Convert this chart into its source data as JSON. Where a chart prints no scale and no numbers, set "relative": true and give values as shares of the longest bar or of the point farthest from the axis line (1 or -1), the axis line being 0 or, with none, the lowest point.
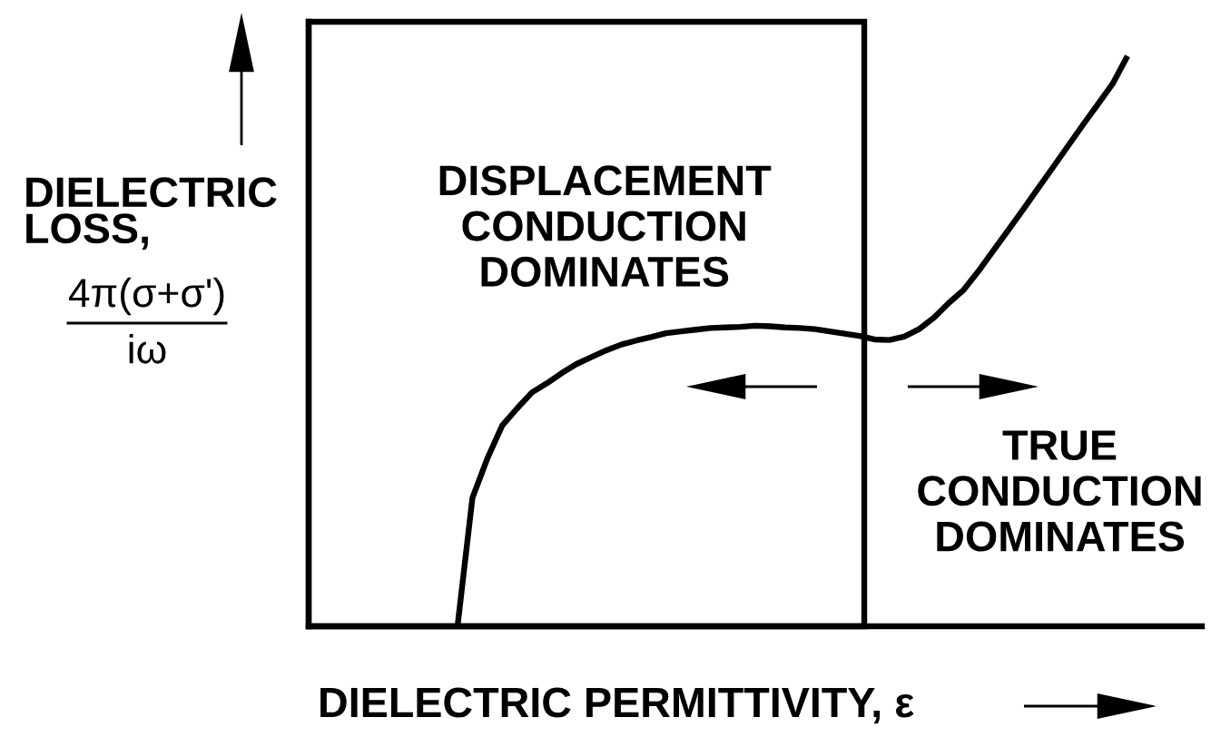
{
  "chart_data": {
    "type": "line",
    "relative": true,
    "xlabel": "DIELECTRIC PERMITTIVITY, ε",
    "ylabel": "DIELECTRIC\nLOSS,\n4π(σ+σ')\niω",
    "categories": [
      null,
      null,
      null,
      null,
      null,
      null,
      null,
      null,
      null,
      null,
      null,
      null,
      null,
      null,
      null,
      null,
      null,
      null,
      null,
      null,
      null,
      null,
      null,
      null,
      null,
      null,
      null,
      null,
      null,
      null,
      null,
      null,
      null,
      null,
      null,
      null,
      null,
      null,
      null,
      null,
      null,
      null,
      null,
      null,
      null,
      null,
      null,
      null,
      null,
      null,
      null,
      null,
      null,
      null,
      null,
      null,
      null,
      null,
      null,
      null,
      null
    ],
    "series": [
      {
        "color": "#000000",
        "values": [
          null,
          null,
          null,
          null,
          null,
          null,
          null,
          null,
          null,
          null,
          0,
          0.225,
          0.294,
          0.352,
          0.382,
          0.41,
          0.426,
          0.444,
          0.46,
          0.472,
          0.484,
          0.494,
          0.501,
          0.507,
          0.514,
          0.517,
          0.52,
          0.523,
          0.524,
          0.525,
          0.527,
          0.526,
          0.524,
          0.523,
          0.521,
          0.517,
          0.513,
          0.509,
          0.503,
          0.502,
          0.508,
          0.521,
          0.541,
          0.567,
          0.59,
          0.623,
          0.659,
          0.695,
          0.731,
          0.768,
          0.805,
          0.842,
          0.879,
          0.915,
          0.951,
          1.0,
          null,
          null,
          null,
          null,
          null
        ]
      }
    ],
    "annotations": [
      "DISPLACEMENT\nCONDUCTION\nDOMINATES",
      "TRUE\nCONDUCTION\nDOMINATES"
    ]
  }
}
